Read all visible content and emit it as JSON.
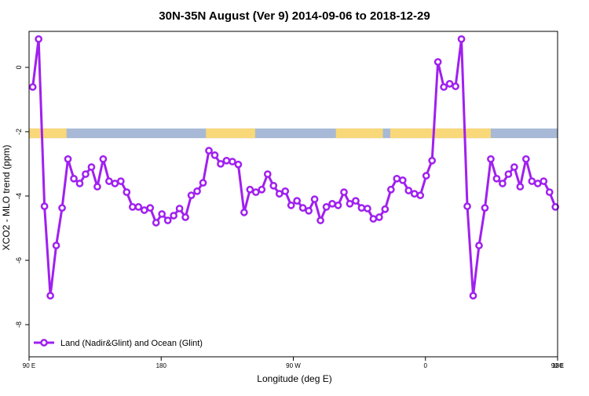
{
  "chart_data": {
    "type": "line",
    "title": "30N-35N August (Ver 9)   2014-09-06 to 2018-12-29",
    "xlabel": "Longitude (deg E)",
    "ylabel": "XCO2 - MLO trend (ppm)",
    "xlim": [
      90,
      450
    ],
    "xticks": [
      {
        "value": 90,
        "label": "90 E"
      },
      {
        "value": 180,
        "label": "180"
      },
      {
        "value": 270,
        "label": "90 W"
      },
      {
        "value": 360,
        "label": "0"
      },
      {
        "value": 450,
        "label": "90 E"
      },
      {
        "value": 540,
        "label": "180"
      }
    ],
    "ylim": [
      -9,
      1.12
    ],
    "yticks": [
      0,
      -2,
      -4,
      -6,
      -8
    ],
    "legend": "bottom-left",
    "x": [
      92.5,
      96.5,
      100.5,
      104.5,
      108.5,
      112.5,
      116.5,
      120.5,
      124.5,
      128.5,
      132.5,
      136.5,
      140.5,
      144.5,
      148.5,
      152.5,
      156.5,
      160.5,
      164.5,
      168.5,
      172.5,
      176.5,
      180.5,
      184.5,
      188.5,
      192.5,
      196.5,
      200.5,
      204.5,
      208.5,
      212.5,
      216.5,
      220.5,
      224.5,
      228.5,
      232.5,
      236.5,
      240.5,
      244.5,
      248.5,
      252.5,
      256.5,
      260.5,
      264.5,
      268.5,
      272.5,
      276.5,
      280.5,
      284.5,
      288.5,
      292.5,
      296.5,
      300.5,
      304.5,
      308.5,
      312.5,
      316.5,
      320.5,
      324.5,
      328.5,
      332.5,
      336.5,
      340.5,
      344.5,
      348.5,
      352.5,
      356.5,
      360.5,
      364.5,
      368.5,
      372.5,
      376.5,
      380.5,
      384.5,
      388.5,
      392.5,
      396.5,
      400.5,
      404.5,
      408.5,
      412.5,
      416.5,
      420.5,
      424.5,
      428.5,
      432.5,
      436.5,
      440.5,
      444.5,
      448.5
    ],
    "series": [
      {
        "name": "Land (Nadir&Glint) and Ocean (Glint)",
        "color": "#a020f0",
        "values": [
          -0.61,
          0.88,
          -4.32,
          -7.1,
          -5.54,
          -4.37,
          -2.85,
          -3.46,
          -3.61,
          -3.32,
          -3.1,
          -3.71,
          -2.85,
          -3.54,
          -3.61,
          -3.54,
          -3.88,
          -4.34,
          -4.34,
          -4.44,
          -4.37,
          -4.83,
          -4.56,
          -4.76,
          -4.61,
          -4.39,
          -4.66,
          -3.98,
          -3.85,
          -3.59,
          -2.59,
          -2.73,
          -3.0,
          -2.9,
          -2.93,
          -3.02,
          -4.51,
          -3.8,
          -3.88,
          -3.8,
          -3.32,
          -3.68,
          -3.93,
          -3.85,
          -4.29,
          -4.15,
          -4.37,
          -4.46,
          -4.1,
          -4.76,
          -4.34,
          -4.24,
          -4.29,
          -3.88,
          -4.24,
          -4.15,
          -4.37,
          -4.39,
          -4.71,
          -4.66,
          -4.41,
          -3.8,
          -3.46,
          -3.51,
          -3.83,
          -3.93,
          -3.98,
          -3.37,
          -2.9,
          0.17,
          -0.61,
          -0.51,
          -0.59,
          0.88,
          -4.32,
          -7.1,
          -5.54,
          -4.37,
          -2.85,
          -3.46,
          -3.61,
          -3.32,
          -3.1,
          -3.71,
          -2.85,
          -3.54,
          -3.61,
          -3.54,
          -3.88,
          -4.34
        ]
      }
    ],
    "surface_band": {
      "ylim": [
        -2.2,
        -1.9
      ],
      "land_color": "#f8d878",
      "ocean_color": "#a7b9d6",
      "land_lon": [
        [
          90,
          115.5
        ],
        [
          210.5,
          244
        ],
        [
          299,
          331
        ],
        [
          336,
          404.5
        ]
      ]
    }
  }
}
